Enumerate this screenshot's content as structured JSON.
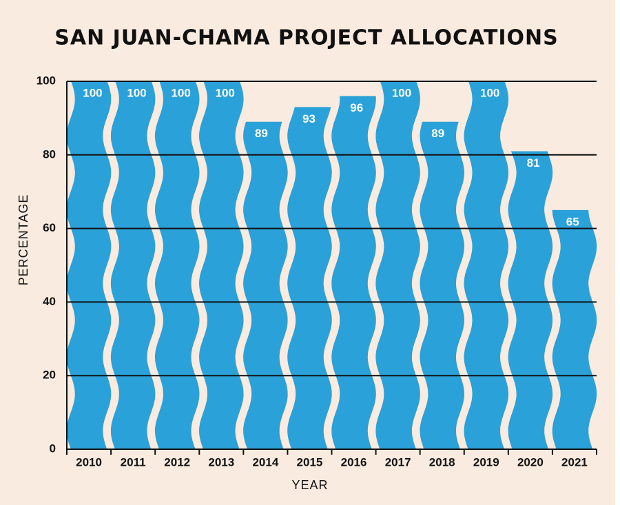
{
  "chart_data": {
    "type": "bar",
    "title": "SAN JUAN-CHAMA PROJECT ALLOCATIONS",
    "x_label": "YEAR",
    "y_label": "PERCENTAGE",
    "categories": [
      "2010",
      "2011",
      "2012",
      "2013",
      "2014",
      "2015",
      "2016",
      "2017",
      "2018",
      "2019",
      "2020",
      "2021"
    ],
    "values": [
      100,
      100,
      100,
      100,
      89,
      93,
      96,
      100,
      89,
      100,
      81,
      65
    ],
    "color": "#2aa1d9",
    "ylim": [
      0,
      100
    ],
    "yticks": [
      0,
      20,
      40,
      60,
      80,
      100
    ],
    "grid": true
  }
}
